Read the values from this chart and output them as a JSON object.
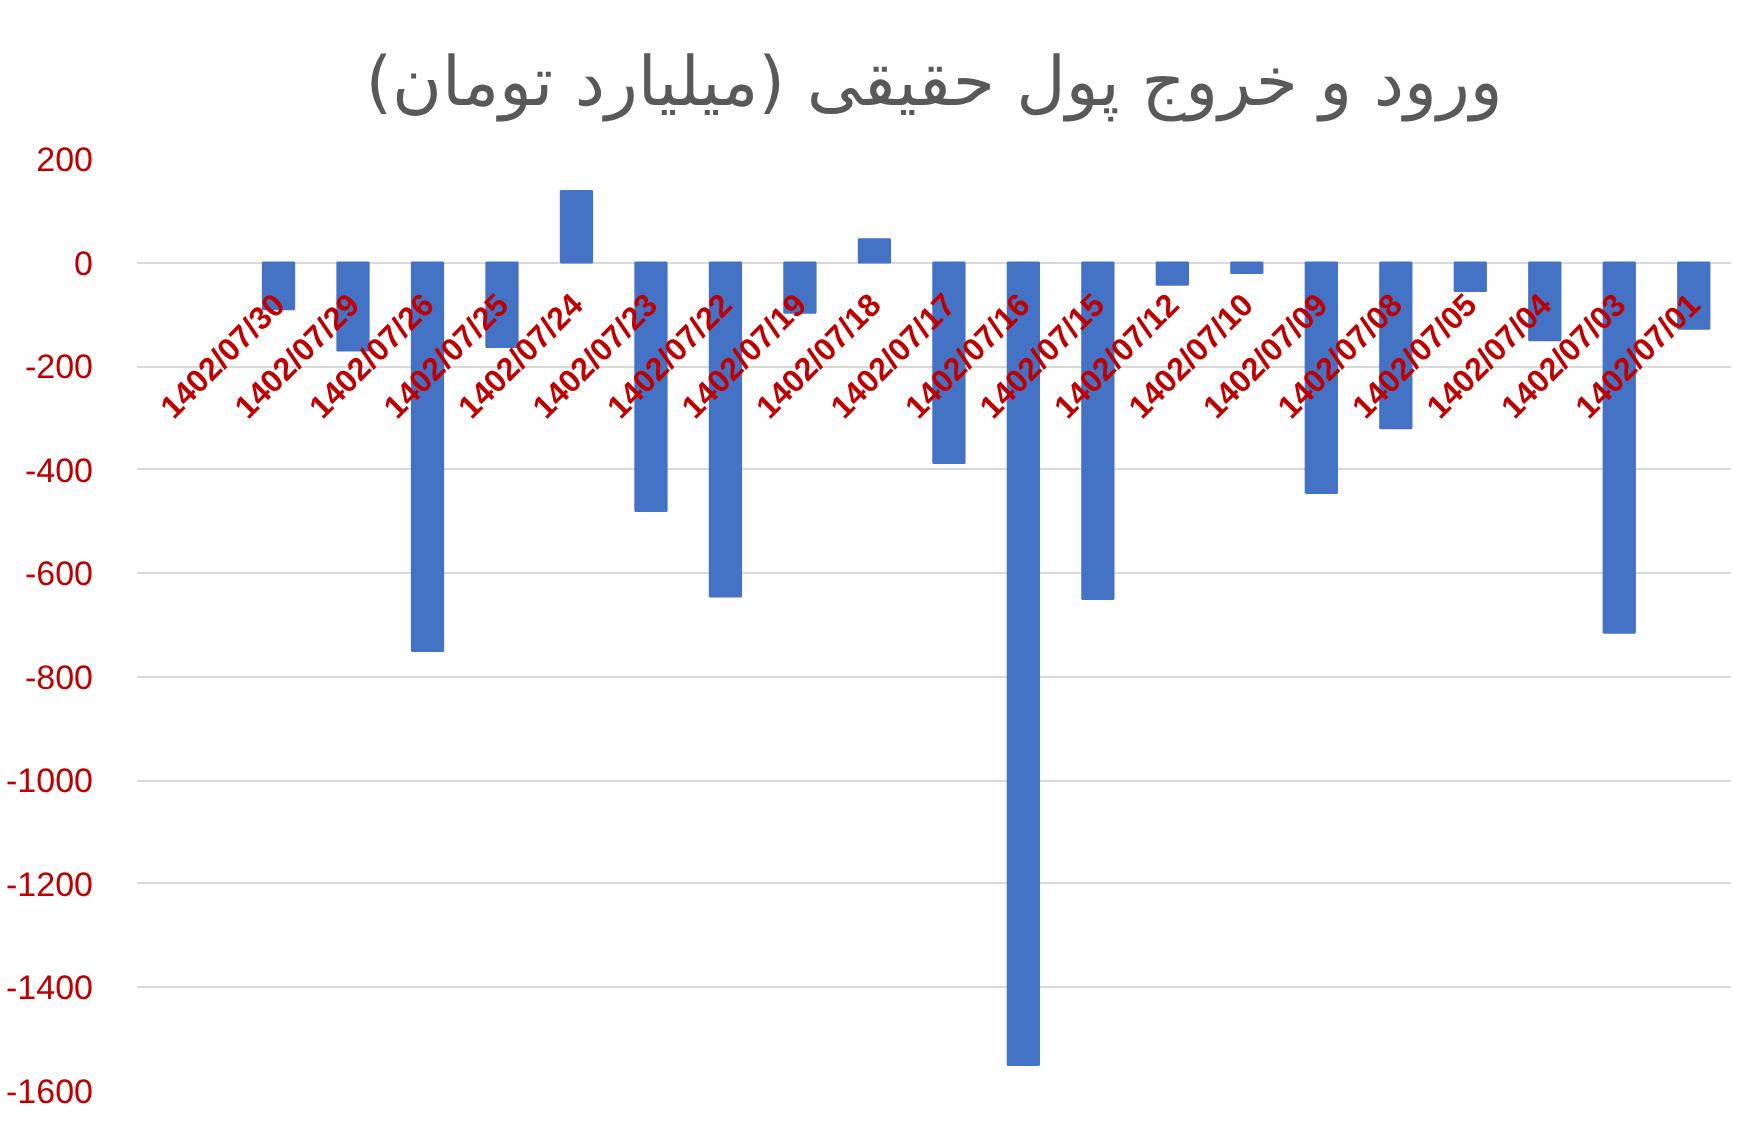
{
  "chart_data": {
    "type": "bar",
    "title": "ورود و خروج پول حقیقی (میلیارد تومان)",
    "categories": [
      "1402/07/30",
      "1402/07/29",
      "1402/07/26",
      "1402/07/25",
      "1402/07/24",
      "1402/07/23",
      "1402/07/22",
      "1402/07/19",
      "1402/07/18",
      "1402/07/17",
      "1402/07/16",
      "1402/07/15",
      "1402/07/12",
      "1402/07/10",
      "1402/07/09",
      "1402/07/08",
      "1402/07/05",
      "1402/07/04",
      "1402/07/03",
      "1402/07/01"
    ],
    "values": [
      -90,
      -170,
      -750,
      -163,
      138,
      -480,
      -645,
      -97,
      45,
      -387,
      -1550,
      -650,
      -43,
      -20,
      -445,
      -320,
      -55,
      -150,
      -715,
      -128
    ],
    "color": "#4472c4",
    "ylim": [
      -1600,
      200
    ],
    "yticks": [
      -1600,
      -1400,
      -1200,
      -1000,
      -800,
      -600,
      -400,
      -200,
      0,
      200
    ],
    "grid": "y"
  }
}
